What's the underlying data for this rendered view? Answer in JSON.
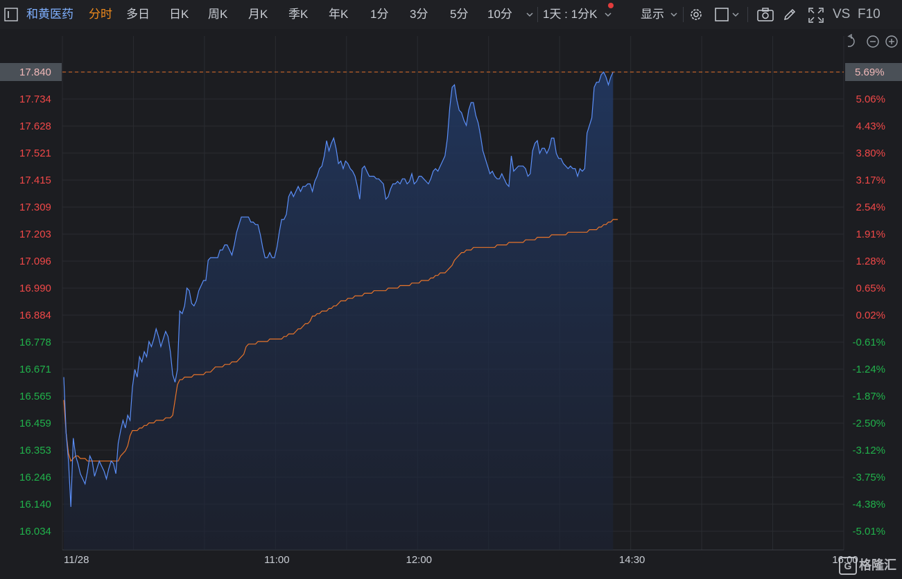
{
  "toolbar": {
    "stock_name": "和黄医药",
    "tabs": [
      "分时",
      "多日",
      "日K",
      "周K",
      "月K",
      "季K",
      "年K",
      "1分",
      "3分",
      "5分",
      "10分"
    ],
    "active_tab": "分时",
    "period_select": "1天 : 1分K",
    "display_label": "显示",
    "vs_label": "VS",
    "f10_label": "F10"
  },
  "watermark": {
    "logo_letter": "G",
    "text": "格隆汇"
  },
  "colors": {
    "background": "#1c1d21",
    "price_line": "#5b8ff9",
    "avg_line": "#e8742a",
    "up": "#f04848",
    "down": "#21b24b",
    "axis_text": "#c9cdd4",
    "grid": "#2a2c31"
  },
  "chart_data": {
    "type": "line",
    "x_labels": [
      "11/28",
      "11:00",
      "12:00",
      "14:30",
      "16:00"
    ],
    "y_left_ticks": [
      "17.840",
      "17.734",
      "17.628",
      "17.521",
      "17.415",
      "17.309",
      "17.203",
      "17.096",
      "16.990",
      "16.884",
      "16.778",
      "16.671",
      "16.565",
      "16.459",
      "16.353",
      "16.246",
      "16.140",
      "16.034"
    ],
    "y_right_ticks": [
      "5.69%",
      "5.06%",
      "4.43%",
      "3.80%",
      "3.17%",
      "2.54%",
      "1.91%",
      "1.28%",
      "0.65%",
      "0.02%",
      "-0.61%",
      "-1.24%",
      "-1.87%",
      "-2.50%",
      "-3.12%",
      "-3.75%",
      "-4.38%",
      "-5.01%"
    ],
    "ylim": [
      16.034,
      17.84
    ],
    "reference_line": 17.84,
    "current_price_label": "17.840",
    "current_pct_label": "5.69%",
    "series": [
      {
        "values": [
          16.64,
          16.42,
          16.31,
          16.13,
          16.4,
          16.33,
          16.3,
          16.26,
          16.24,
          16.22,
          16.27,
          16.33,
          16.31,
          16.25,
          16.28,
          16.31,
          16.29,
          16.27,
          16.24,
          16.28,
          16.31,
          16.3,
          16.26,
          16.38,
          16.43,
          16.47,
          16.44,
          16.49,
          16.47,
          16.6,
          16.67,
          16.64,
          16.72,
          16.7,
          16.74,
          16.72,
          16.78,
          16.76,
          16.79,
          16.83,
          16.8,
          16.76,
          16.79,
          16.82,
          16.8,
          16.74,
          16.65,
          16.62,
          16.67,
          16.9,
          16.89,
          16.92,
          16.99,
          16.98,
          16.93,
          16.92,
          16.94,
          16.98,
          17.0,
          17.02,
          17.02,
          17.1,
          17.11,
          17.11,
          17.11,
          17.11,
          17.14,
          17.14,
          17.16,
          17.16,
          17.14,
          17.12,
          17.16,
          17.21,
          17.24,
          17.27,
          17.27,
          17.27,
          17.27,
          17.25,
          17.25,
          17.24,
          17.24,
          17.2,
          17.15,
          17.11,
          17.11,
          17.13,
          17.11,
          17.11,
          17.15,
          17.21,
          17.26,
          17.26,
          17.28,
          17.35,
          17.37,
          17.35,
          17.37,
          17.39,
          17.37,
          17.39,
          17.39,
          17.4,
          17.4,
          17.37,
          17.41,
          17.43,
          17.46,
          17.47,
          17.51,
          17.57,
          17.53,
          17.56,
          17.58,
          17.54,
          17.48,
          17.49,
          17.46,
          17.49,
          17.48,
          17.46,
          17.45,
          17.43,
          17.39,
          17.34,
          17.46,
          17.47,
          17.45,
          17.43,
          17.43,
          17.43,
          17.42,
          17.42,
          17.41,
          17.4,
          17.34,
          17.35,
          17.38,
          17.4,
          17.4,
          17.41,
          17.4,
          17.42,
          17.42,
          17.4,
          17.41,
          17.44,
          17.4,
          17.41,
          17.43,
          17.43,
          17.42,
          17.41,
          17.4,
          17.42,
          17.45,
          17.46,
          17.45,
          17.47,
          17.49,
          17.51,
          17.58,
          17.7,
          17.78,
          17.79,
          17.73,
          17.69,
          17.68,
          17.65,
          17.63,
          17.69,
          17.72,
          17.72,
          17.67,
          17.64,
          17.59,
          17.53,
          17.5,
          17.47,
          17.44,
          17.45,
          17.43,
          17.42,
          17.42,
          17.44,
          17.42,
          17.4,
          17.39,
          17.51,
          17.45,
          17.46,
          17.47,
          17.47,
          17.47,
          17.46,
          17.43,
          17.44,
          17.53,
          17.56,
          17.57,
          17.52,
          17.54,
          17.54,
          17.52,
          17.54,
          17.58,
          17.58,
          17.52,
          17.5,
          17.5,
          17.48,
          17.47,
          17.46,
          17.47,
          17.46,
          17.46,
          17.43,
          17.46,
          17.45,
          17.46,
          17.6,
          17.63,
          17.66,
          17.78,
          17.8,
          17.8,
          17.83,
          17.84,
          17.82,
          17.79,
          17.82,
          17.84
        ]
      },
      {
        "values": [
          16.55,
          16.42,
          16.34,
          16.31,
          16.32,
          16.33,
          16.33,
          16.32,
          16.32,
          16.32,
          16.31,
          16.31,
          16.31,
          16.31,
          16.31,
          16.31,
          16.31,
          16.31,
          16.31,
          16.31,
          16.31,
          16.31,
          16.31,
          16.31,
          16.33,
          16.34,
          16.35,
          16.37,
          16.41,
          16.43,
          16.43,
          16.43,
          16.44,
          16.44,
          16.45,
          16.45,
          16.46,
          16.46,
          16.46,
          16.47,
          16.47,
          16.47,
          16.47,
          16.48,
          16.48,
          16.48,
          16.49,
          16.55,
          16.61,
          16.63,
          16.63,
          16.64,
          16.64,
          16.64,
          16.64,
          16.65,
          16.65,
          16.65,
          16.65,
          16.65,
          16.66,
          16.66,
          16.66,
          16.67,
          16.68,
          16.68,
          16.68,
          16.68,
          16.69,
          16.69,
          16.69,
          16.7,
          16.7,
          16.7,
          16.71,
          16.72,
          16.73,
          16.76,
          16.77,
          16.77,
          16.77,
          16.77,
          16.78,
          16.78,
          16.78,
          16.78,
          16.78,
          16.79,
          16.79,
          16.79,
          16.79,
          16.79,
          16.79,
          16.8,
          16.8,
          16.81,
          16.81,
          16.81,
          16.82,
          16.83,
          16.83,
          16.84,
          16.85,
          16.85,
          16.86,
          16.88,
          16.88,
          16.89,
          16.89,
          16.9,
          16.9,
          16.9,
          16.91,
          16.91,
          16.92,
          16.92,
          16.93,
          16.94,
          16.94,
          16.94,
          16.95,
          16.95,
          16.95,
          16.96,
          16.96,
          16.96,
          16.96,
          16.97,
          16.97,
          16.97,
          16.97,
          16.98,
          16.98,
          16.98,
          16.98,
          16.98,
          16.98,
          16.99,
          16.99,
          16.99,
          16.99,
          16.99,
          17.0,
          17.0,
          17.0,
          17.0,
          17.0,
          17.01,
          17.01,
          17.01,
          17.01,
          17.02,
          17.02,
          17.02,
          17.02,
          17.03,
          17.03,
          17.04,
          17.04,
          17.05,
          17.05,
          17.05,
          17.06,
          17.07,
          17.08,
          17.1,
          17.11,
          17.12,
          17.13,
          17.13,
          17.14,
          17.14,
          17.14,
          17.15,
          17.15,
          17.15,
          17.15,
          17.15,
          17.15,
          17.15,
          17.15,
          17.15,
          17.15,
          17.16,
          17.16,
          17.16,
          17.16,
          17.16,
          17.17,
          17.17,
          17.17,
          17.17,
          17.17,
          17.17,
          17.17,
          17.18,
          17.18,
          17.18,
          17.18,
          17.18,
          17.19,
          17.19,
          17.19,
          17.19,
          17.19,
          17.19,
          17.2,
          17.2,
          17.2,
          17.2,
          17.2,
          17.2,
          17.2,
          17.21,
          17.21,
          17.21,
          17.21,
          17.21,
          17.21,
          17.21,
          17.21,
          17.21,
          17.22,
          17.22,
          17.22,
          17.22,
          17.23,
          17.23,
          17.24,
          17.24,
          17.25,
          17.25,
          17.26,
          17.26,
          17.26
        ]
      }
    ],
    "grid": true
  }
}
